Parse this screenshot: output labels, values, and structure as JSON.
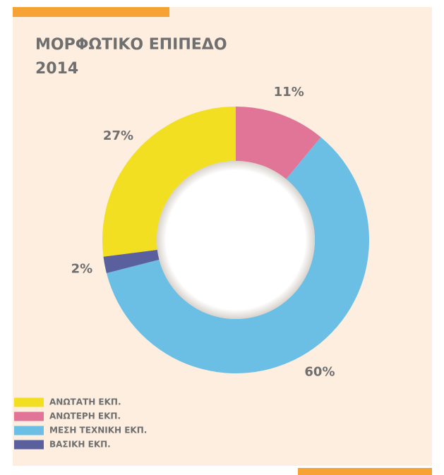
{
  "chart_data": {
    "type": "donut",
    "title": "ΜΟΡΦΩΤΙΚΟ ΕΠΙΠΕΔΟ",
    "subtitle": "2014",
    "categories": [
      "ΑΝΩΤΑΤΗ ΕΚΠ.",
      "ΑΝΩΤΕΡΗ ΕΚΠ.",
      "ΜΕΣΗ ΤΕΧΝΙΚΗ ΕΚΠ.",
      "ΒΑΣΙΚΗ ΕΚΠ."
    ],
    "values": [
      27,
      11,
      60,
      2
    ],
    "value_labels": [
      "27%",
      "11%",
      "60%",
      "2%"
    ],
    "colors": [
      "#f2df22",
      "#e07598",
      "#6cbfe4",
      "#5a5f9e"
    ],
    "legend": "bottom-left"
  }
}
